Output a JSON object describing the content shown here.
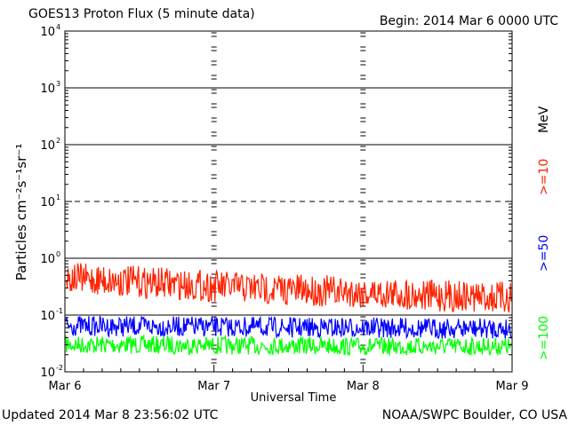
{
  "header": {
    "title": "GOES13 Proton Flux (5 minute data)",
    "begin": "Begin: 2014 Mar 6 0000 UTC"
  },
  "footer": {
    "updated": "Updated 2014 Mar  8 23:56:02 UTC",
    "credit": "NOAA/SWPC Boulder, CO USA"
  },
  "chart_data": {
    "type": "line",
    "title": "GOES13 Proton Flux (5 minute data)",
    "xlabel": "Universal Time",
    "ylabel": "Particles cm⁻²s⁻¹sr⁻¹",
    "y_scale": "log",
    "ylim": [
      0.01,
      10000
    ],
    "xlim": [
      "2014-03-06",
      "2014-03-09"
    ],
    "x_ticks": [
      "Mar 6",
      "Mar 7",
      "Mar 8",
      "Mar 9"
    ],
    "y_ticks": [
      {
        "base": "10",
        "exp": "-2",
        "value": 0.01
      },
      {
        "base": "10",
        "exp": "-1",
        "value": 0.1
      },
      {
        "base": "10",
        "exp": "0",
        "value": 1
      },
      {
        "base": "10",
        "exp": "1",
        "value": 10
      },
      {
        "base": "10",
        "exp": "2",
        "value": 100
      },
      {
        "base": "10",
        "exp": "3",
        "value": 1000
      },
      {
        "base": "10",
        "exp": "4",
        "value": 10000
      }
    ],
    "threshold_line": 10,
    "unit_label": "MeV",
    "series": [
      {
        "name": ">=10",
        "color": "#ff2200",
        "x": [
          "2014-03-06 00:00",
          "2014-03-06 12:00",
          "2014-03-07 00:00",
          "2014-03-07 12:00",
          "2014-03-08 00:00",
          "2014-03-08 12:00",
          "2014-03-09 00:00"
        ],
        "values": [
          0.45,
          0.38,
          0.32,
          0.28,
          0.25,
          0.22,
          0.2
        ]
      },
      {
        "name": ">=50",
        "color": "#0000ff",
        "x": [
          "2014-03-06 00:00",
          "2014-03-06 12:00",
          "2014-03-07 00:00",
          "2014-03-07 12:00",
          "2014-03-08 00:00",
          "2014-03-08 12:00",
          "2014-03-09 00:00"
        ],
        "values": [
          0.065,
          0.063,
          0.062,
          0.06,
          0.06,
          0.058,
          0.058
        ]
      },
      {
        "name": ">=100",
        "color": "#00ff00",
        "x": [
          "2014-03-06 00:00",
          "2014-03-06 12:00",
          "2014-03-07 00:00",
          "2014-03-07 12:00",
          "2014-03-08 00:00",
          "2014-03-08 12:00",
          "2014-03-09 00:00"
        ],
        "values": [
          0.03,
          0.03,
          0.029,
          0.029,
          0.028,
          0.028,
          0.028
        ]
      }
    ]
  }
}
